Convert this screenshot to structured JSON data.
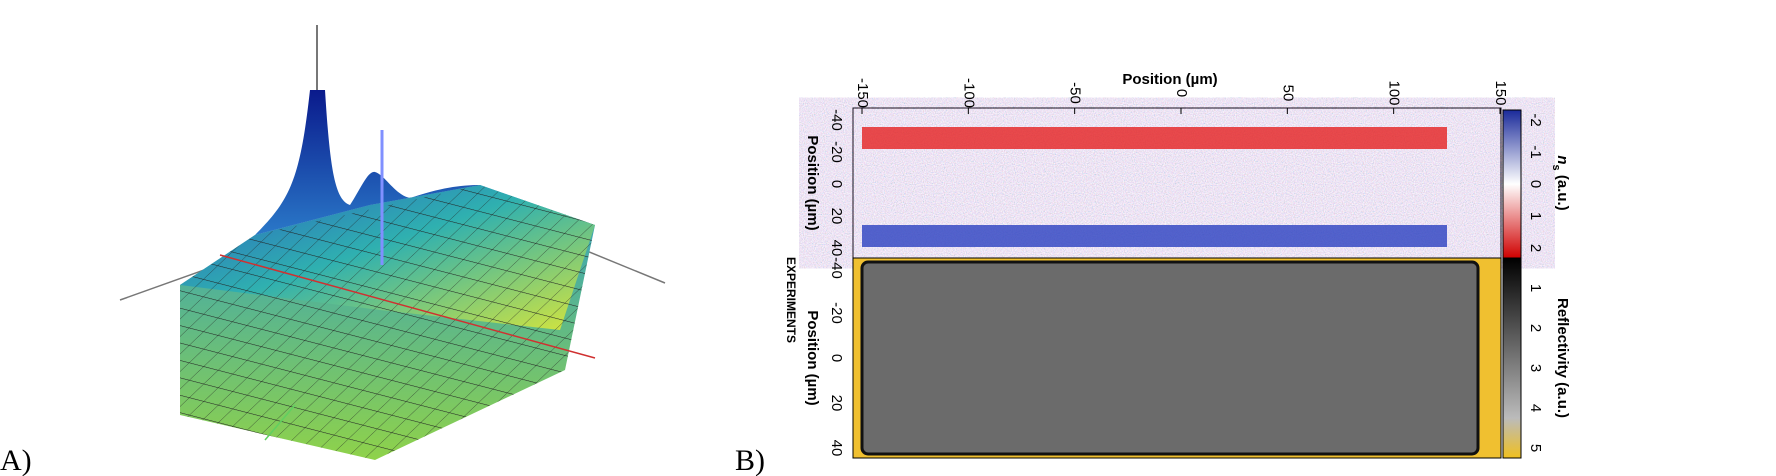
{
  "panels": [
    {
      "label": "A)"
    },
    {
      "label": "B)",
      "top_axis": {
        "title": "Position (µm)",
        "ticks": [
          "-150",
          "-100",
          "-50",
          "0",
          "50",
          "100",
          "150"
        ]
      },
      "upper": {
        "y_title": "Position (µm)",
        "y_ticks": [
          "-40",
          "-20",
          "0",
          "20",
          "40"
        ],
        "colorbar_title": "n",
        "colorbar_sub": "s",
        "colorbar_unit": " (a.u.)",
        "colorbar_ticks": [
          "-2",
          "-1",
          "0",
          "1",
          "2"
        ]
      },
      "lower": {
        "y_title": "Position (µm)",
        "y_ticks": [
          "-40",
          "-20",
          "0",
          "20",
          "40"
        ],
        "colorbar_title": "Reflectivity (a.u.)",
        "colorbar_ticks": [
          "1",
          "2",
          "3",
          "4",
          "5"
        ]
      },
      "side_label": "EXPERIMENTS"
    }
  ]
}
